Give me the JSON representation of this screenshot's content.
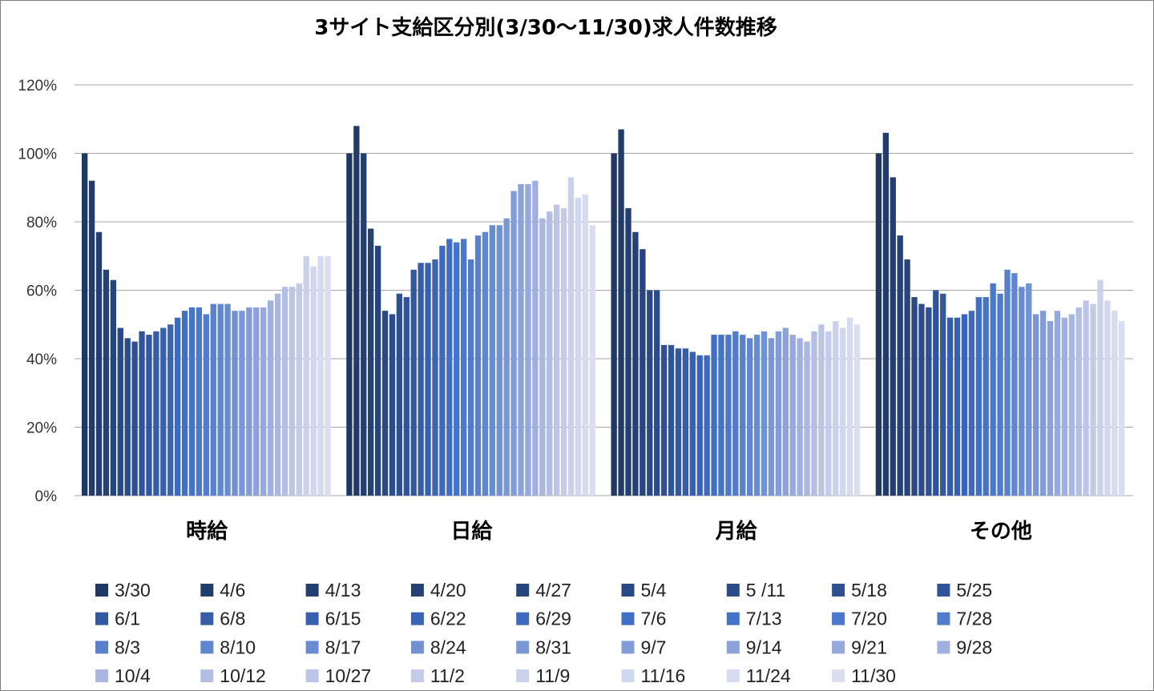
{
  "chart_data": {
    "type": "bar",
    "title": "3サイト支給区分別(3/30～11/30)求人件数推移",
    "xlabel": "",
    "ylabel": "",
    "ylim": [
      0,
      120
    ],
    "y_ticks": [
      "0%",
      "20%",
      "40%",
      "60%",
      "80%",
      "100%",
      "120%"
    ],
    "grid": true,
    "legend_position": "bottom",
    "categories": [
      "時給",
      "日給",
      "月給",
      "その他"
    ],
    "series": [
      {
        "name": "3/30",
        "color": "#203864",
        "values": [
          100,
          100,
          100,
          100
        ]
      },
      {
        "name": "4/6",
        "color": "#213b6a",
        "values": [
          92,
          108,
          107,
          106
        ]
      },
      {
        "name": "4/13",
        "color": "#233e70",
        "values": [
          77,
          100,
          84,
          93
        ]
      },
      {
        "name": "4/20",
        "color": "#254276",
        "values": [
          66,
          78,
          77,
          76
        ]
      },
      {
        "name": "4/27",
        "color": "#27457d",
        "values": [
          63,
          73,
          72,
          69
        ]
      },
      {
        "name": "5/4",
        "color": "#294984",
        "values": [
          49,
          54,
          60,
          58
        ]
      },
      {
        "name": "5 /11",
        "color": "#2b4c8b",
        "values": [
          46,
          53,
          60,
          56
        ]
      },
      {
        "name": "5/18",
        "color": "#2e5092",
        "values": [
          45,
          59,
          44,
          55
        ]
      },
      {
        "name": "5/25",
        "color": "#305499",
        "values": [
          48,
          58,
          44,
          60
        ]
      },
      {
        "name": "6/1",
        "color": "#3258a0",
        "values": [
          47,
          66,
          43,
          59
        ]
      },
      {
        "name": "6/8",
        "color": "#355da8",
        "values": [
          48,
          68,
          43,
          52
        ]
      },
      {
        "name": "6/15",
        "color": "#3761af",
        "values": [
          49,
          68,
          42,
          52
        ]
      },
      {
        "name": "6/22",
        "color": "#3a65b6",
        "values": [
          50,
          69,
          41,
          53
        ]
      },
      {
        "name": "6/29",
        "color": "#3d6abd",
        "values": [
          52,
          73,
          41,
          54
        ]
      },
      {
        "name": "7/6",
        "color": "#406fc4",
        "values": [
          54,
          75,
          47,
          58
        ]
      },
      {
        "name": "7/13",
        "color": "#4473c8",
        "values": [
          55,
          74,
          47,
          58
        ]
      },
      {
        "name": "7/20",
        "color": "#4a78ca",
        "values": [
          55,
          75,
          47,
          62
        ]
      },
      {
        "name": "7/28",
        "color": "#507ccb",
        "values": [
          53,
          69,
          48,
          59
        ]
      },
      {
        "name": "8/3",
        "color": "#5781cd",
        "values": [
          56,
          76,
          47,
          66
        ]
      },
      {
        "name": "8/10",
        "color": "#5f86cf",
        "values": [
          56,
          77,
          46,
          65
        ]
      },
      {
        "name": "8/17",
        "color": "#678cd1",
        "values": [
          56,
          79,
          47,
          61
        ]
      },
      {
        "name": "8/24",
        "color": "#7091d3",
        "values": [
          54,
          79,
          48,
          62
        ]
      },
      {
        "name": "8/31",
        "color": "#7996d5",
        "values": [
          54,
          81,
          46,
          53
        ]
      },
      {
        "name": "9/7",
        "color": "#829cd7",
        "values": [
          55,
          89,
          48,
          54
        ]
      },
      {
        "name": "9/14",
        "color": "#8ca2d9",
        "values": [
          55,
          91,
          49,
          51
        ]
      },
      {
        "name": "9/21",
        "color": "#96a9dc",
        "values": [
          55,
          91,
          47,
          54
        ]
      },
      {
        "name": "9/28",
        "color": "#9fb0de",
        "values": [
          57,
          92,
          46,
          52
        ]
      },
      {
        "name": "10/4",
        "color": "#a9b7e1",
        "values": [
          59,
          81,
          45,
          53
        ]
      },
      {
        "name": "10/12",
        "color": "#b2bee4",
        "values": [
          61,
          83,
          48,
          55
        ]
      },
      {
        "name": "10/27",
        "color": "#bbc5e6",
        "values": [
          61,
          85,
          50,
          57
        ]
      },
      {
        "name": "11/2",
        "color": "#c3cbe9",
        "values": [
          62,
          84,
          48,
          56
        ]
      },
      {
        "name": "11/9",
        "color": "#cad2eb",
        "values": [
          70,
          93,
          51,
          63
        ]
      },
      {
        "name": "11/16",
        "color": "#d0d7ee",
        "values": [
          67,
          87,
          49,
          57
        ]
      },
      {
        "name": "11/24",
        "color": "#d5dbf0",
        "values": [
          70,
          88,
          52,
          54
        ]
      },
      {
        "name": "11/30",
        "color": "#d9def1",
        "values": [
          70,
          79,
          50,
          51
        ]
      }
    ]
  }
}
